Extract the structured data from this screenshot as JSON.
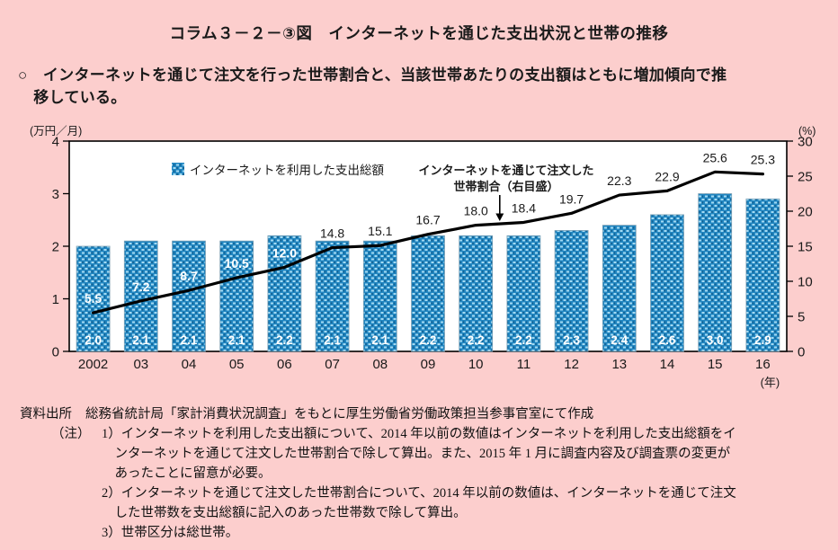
{
  "page": {
    "title": "コラム３－２－③図　インターネットを通じた支出状況と世帯の推移",
    "lead": [
      "○　インターネットを通じて注文を行った世帯割合と、当該世帯あたりの支出額はともに増加傾向で推",
      "　移している。"
    ]
  },
  "chart_data": {
    "type": "bar+line",
    "categories": [
      "2002",
      "03",
      "04",
      "05",
      "06",
      "07",
      "08",
      "09",
      "10",
      "11",
      "12",
      "13",
      "14",
      "15",
      "16"
    ],
    "series": [
      {
        "name": "インターネットを利用した支出総額",
        "type": "bar",
        "axis": "left",
        "values": [
          2.0,
          2.1,
          2.1,
          2.1,
          2.2,
          2.1,
          2.1,
          2.2,
          2.2,
          2.2,
          2.3,
          2.4,
          2.6,
          3.0,
          2.9
        ]
      },
      {
        "name": "インターネットを通じて注文した世帯割合（右目盛）",
        "type": "line",
        "axis": "right",
        "values": [
          5.5,
          7.2,
          8.7,
          10.5,
          12.0,
          14.8,
          15.1,
          16.7,
          18.0,
          18.4,
          19.7,
          22.3,
          22.9,
          25.6,
          25.3
        ]
      }
    ],
    "left_axis": {
      "label": "(万円／月)",
      "min": 0,
      "max": 4,
      "ticks": [
        0,
        1,
        2,
        3,
        4
      ]
    },
    "right_axis": {
      "label": "(%)",
      "min": 0,
      "max": 30,
      "ticks": [
        0,
        5,
        10,
        15,
        20,
        25,
        30
      ]
    },
    "x_axis_unit": "(年)",
    "legend": "インターネットを利用した支出総額",
    "annotation": {
      "lines": [
        "インターネットを通じて注文した",
        "世帯割合（右目盛）"
      ],
      "arrow_between_indices": [
        8,
        9
      ]
    },
    "grid": false,
    "legend_position": "top-left-inside",
    "annotation_position": "top-middle-inside"
  },
  "footer": {
    "source_label": "資料出所",
    "source_text": "総務省統計局「家計消費状況調査」をもとに厚生労働省労働政策担当参事官室にて作成",
    "note_label": "（注）",
    "notes": [
      [
        "1）インターネットを利用した支出額について、2014 年以前の数値はインターネットを利用した支出総額をイ",
        "　ンターネットを通じて注文した世帯割合で除して算出。また、2015 年 1 月に調査内容及び調査票の変更が",
        "　あったことに留意が必要。"
      ],
      [
        "2）インターネットを通じて注文した世帯割合について、2014 年以前の数値は、インターネットを通じて注文",
        "　した世帯数を支出総額に記入のあった世帯数で除して算出。"
      ],
      [
        "3）世帯区分は総世帯。"
      ]
    ]
  },
  "colors": {
    "background": "#fccecd",
    "plot_background": "#ffffff",
    "frame": "#000000",
    "bar": "#2186c1",
    "bar_dot": "#a4daf2",
    "bar_dark": "#125a88",
    "bar_edge": "#7fa2b6",
    "line": "#000000",
    "label_on_bar": "#ffffff",
    "text": "#1a1a1a"
  }
}
